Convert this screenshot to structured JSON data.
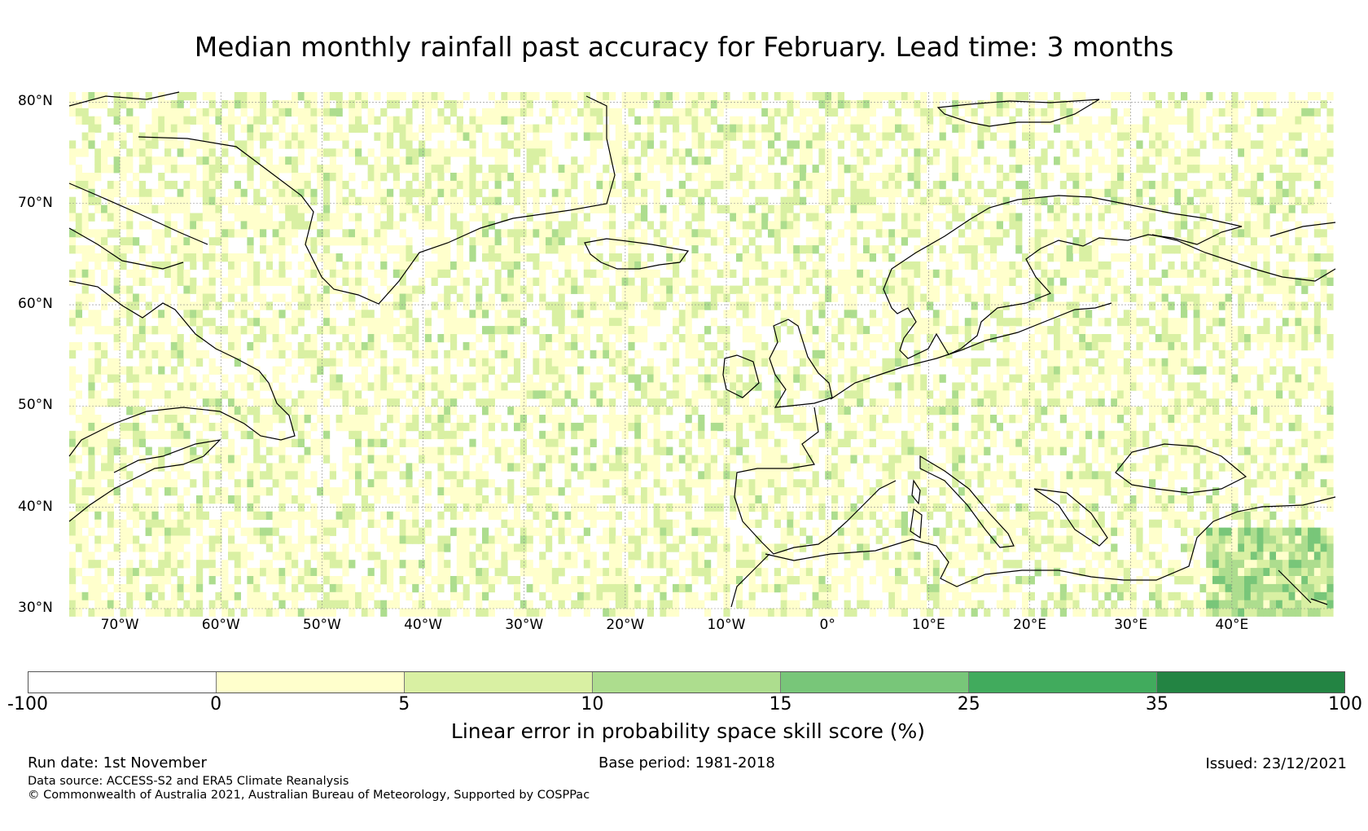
{
  "title": "Median monthly rainfall past accuracy for February. Lead time: 3 months",
  "map": {
    "extent": {
      "lon": [
        -75,
        50
      ],
      "lat": [
        30,
        81
      ]
    },
    "lat_labels": [
      "80°N",
      "70°N",
      "60°N",
      "50°N",
      "40°N",
      "30°N"
    ],
    "lon_labels": [
      "70°W",
      "60°W",
      "50°W",
      "40°W",
      "30°W",
      "20°W",
      "10°W",
      "0°",
      "10°E",
      "20°E",
      "30°E",
      "40°E"
    ]
  },
  "colorbar": {
    "ticks": [
      "-100",
      "0",
      "5",
      "10",
      "15",
      "25",
      "35",
      "100"
    ],
    "colors": [
      "#ffffff",
      "#ffffcc",
      "#d9f0a3",
      "#addd8e",
      "#78c679",
      "#41ab5d",
      "#238443"
    ],
    "label": "Linear error in probability space skill score (%)"
  },
  "footer": {
    "run_date": "Run date: 1st November",
    "base_period": "Base period: 1981-2018",
    "issued": "Issued: 23/12/2021",
    "data_source": "Data source: ACCESS-S2 and ERA5 Climate Reanalysis",
    "copyright": "© Commonwealth of Australia 2021, Australian Bureau of Meteorology, Supported by COSPPac"
  }
}
